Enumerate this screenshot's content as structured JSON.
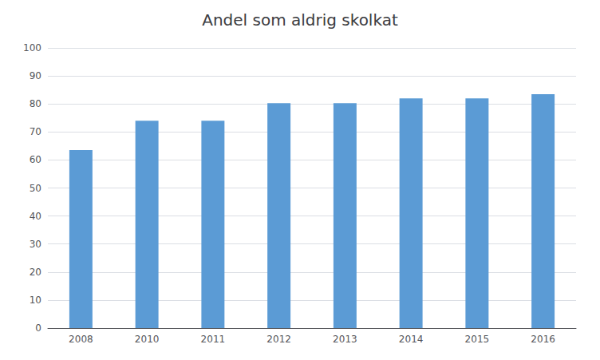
{
  "chart_data": {
    "type": "bar",
    "title": "Andel som aldrig skolkat",
    "categories": [
      "2008",
      "2010",
      "2011",
      "2012",
      "2013",
      "2014",
      "2015",
      "2016"
    ],
    "values": [
      63.5,
      74.0,
      74.0,
      80.3,
      80.3,
      82.0,
      82.0,
      83.5
    ],
    "color": "#5B9BD5",
    "ylim": [
      0,
      100
    ],
    "yticks": [
      0,
      10,
      20,
      30,
      40,
      50,
      60,
      70,
      80,
      90,
      100
    ],
    "grid": true
  }
}
